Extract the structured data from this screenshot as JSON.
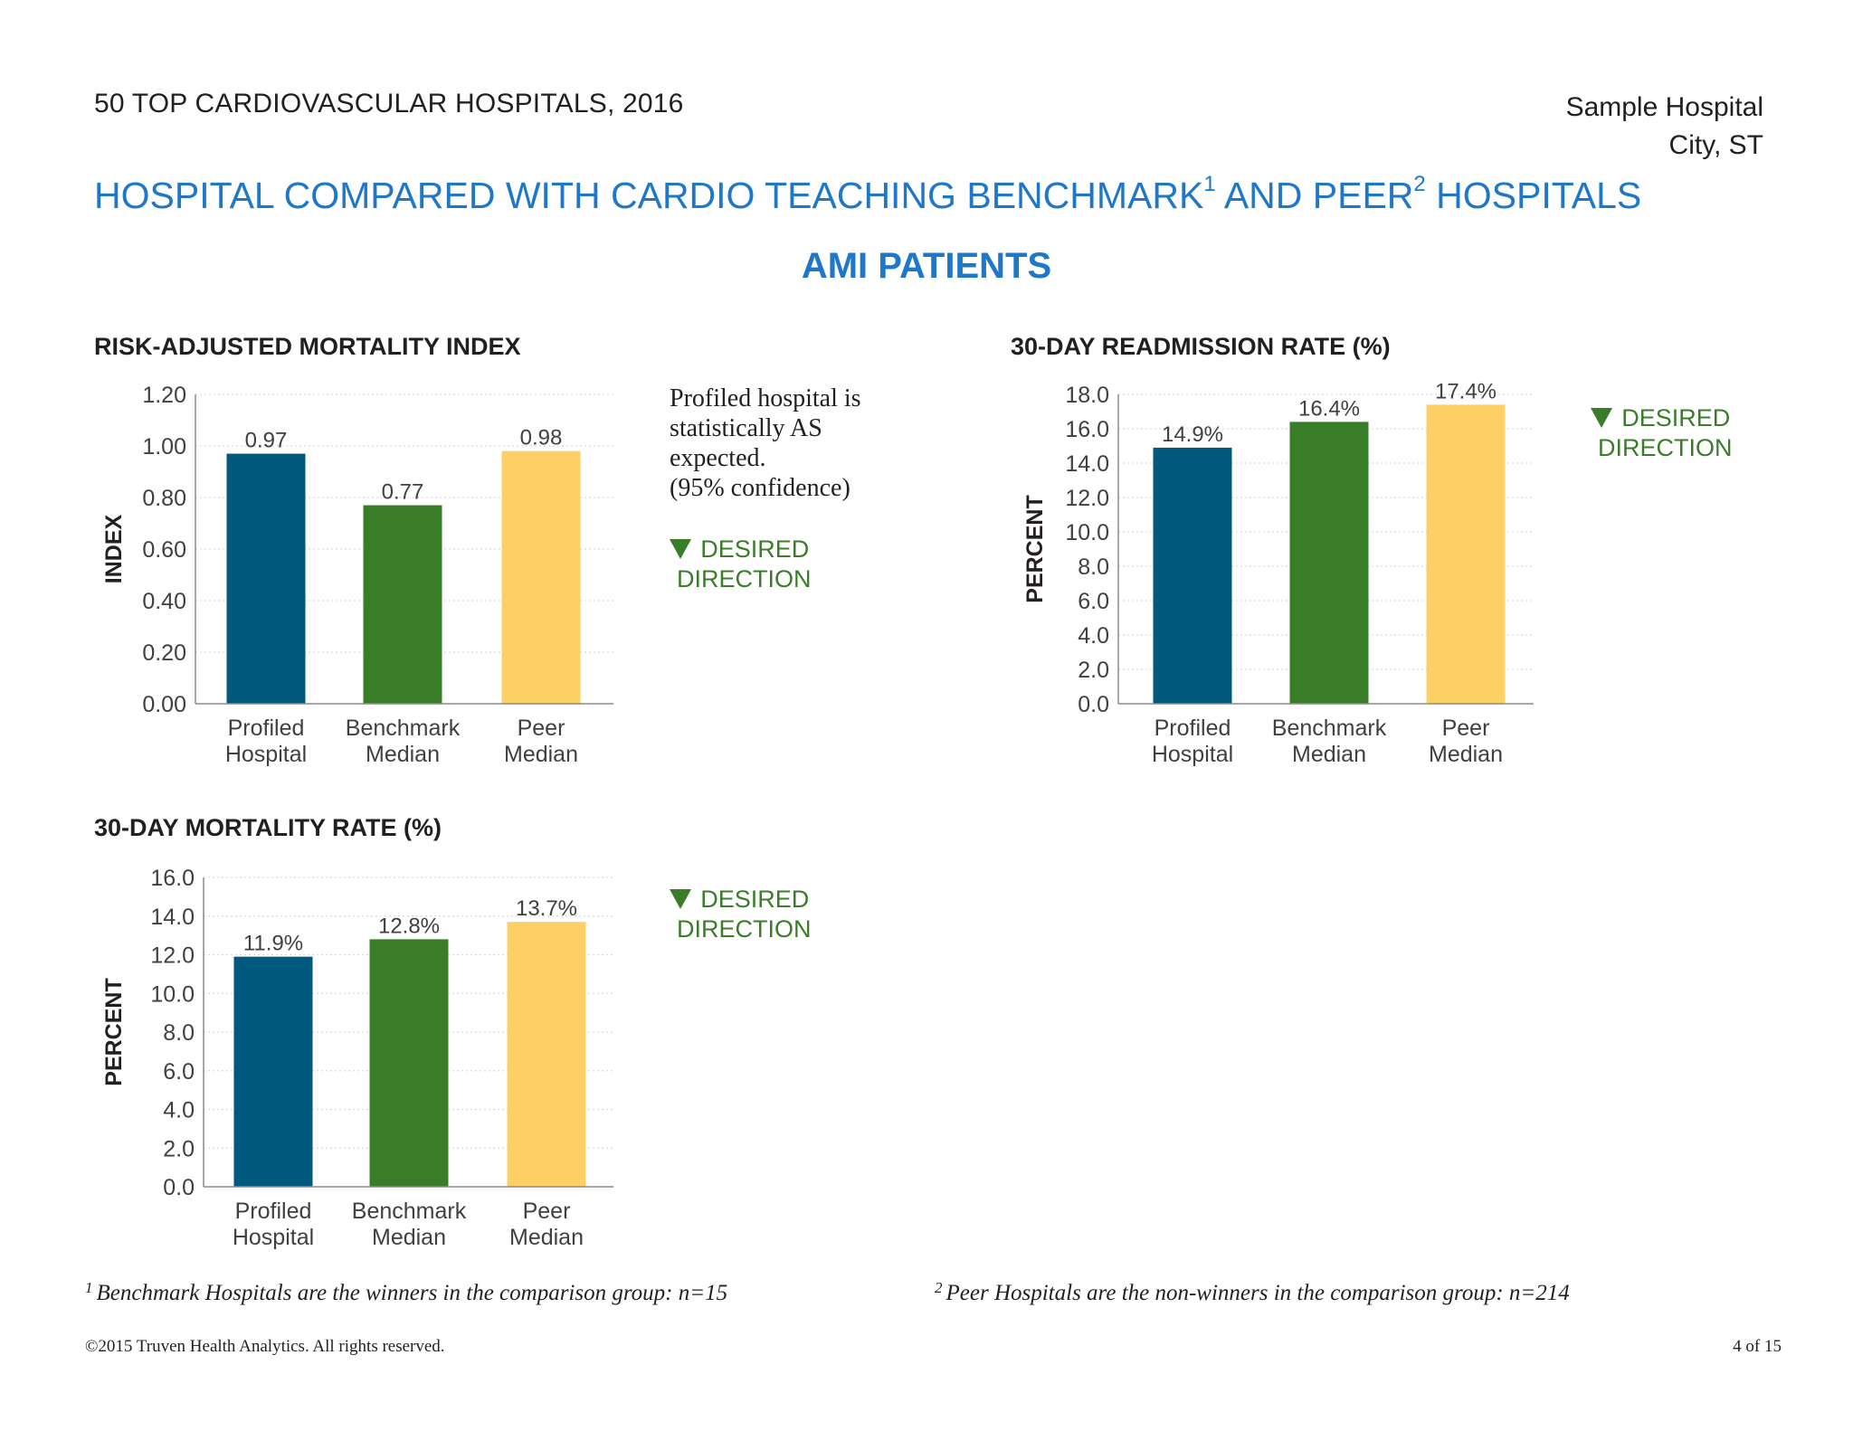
{
  "header": {
    "report_title": "50 TOP CARDIOVASCULAR HOSPITALS, 2016",
    "hospital_name": "Sample Hospital",
    "hospital_location": "City, ST"
  },
  "subtitle": {
    "part1": "HOSPITAL COMPARED WITH CARDIO TEACHING BENCHMARK",
    "sup1": "1",
    "part2": " AND PEER",
    "sup2": "2",
    "part3": " HOSPITALS"
  },
  "section_title": "AMI PATIENTS",
  "note": {
    "line1": "Profiled hospital is",
    "line2": "statistically AS",
    "line3": "expected.",
    "line4": "(95% confidence)"
  },
  "desired_direction": {
    "line1": "DESIRED",
    "line2": "DIRECTION"
  },
  "colors": {
    "profiled": "#02597f",
    "benchmark": "#3a7d29",
    "peer": "#fdd066",
    "accent": "#1f77c9",
    "desired": "#3a7d29"
  },
  "chart_data": [
    {
      "type": "bar",
      "title": "RISK-ADJUSTED MORTALITY INDEX",
      "ylabel": "INDEX",
      "categories": [
        [
          "Profiled",
          "Hospital"
        ],
        [
          "Benchmark",
          "Median"
        ],
        [
          "Peer",
          "Median"
        ]
      ],
      "values": [
        0.97,
        0.77,
        0.98
      ],
      "value_labels": [
        "0.97",
        "0.77",
        "0.98"
      ],
      "ylim": [
        0,
        1.2
      ],
      "yticks": [
        "0.00",
        "0.20",
        "0.40",
        "0.60",
        "0.80",
        "1.00",
        "1.20"
      ],
      "grid": true
    },
    {
      "type": "bar",
      "title": "30-DAY READMISSION RATE (%)",
      "ylabel": "PERCENT",
      "categories": [
        [
          "Profiled",
          "Hospital"
        ],
        [
          "Benchmark",
          "Median"
        ],
        [
          "Peer",
          "Median"
        ]
      ],
      "values": [
        14.9,
        16.4,
        17.4
      ],
      "value_labels": [
        "14.9%",
        "16.4%",
        "17.4%"
      ],
      "ylim": [
        0,
        18
      ],
      "yticks": [
        "0.0",
        "2.0",
        "4.0",
        "6.0",
        "8.0",
        "10.0",
        "12.0",
        "14.0",
        "16.0",
        "18.0"
      ],
      "grid": true
    },
    {
      "type": "bar",
      "title": "30-DAY MORTALITY RATE (%)",
      "ylabel": "PERCENT",
      "categories": [
        [
          "Profiled",
          "Hospital"
        ],
        [
          "Benchmark",
          "Median"
        ],
        [
          "Peer",
          "Median"
        ]
      ],
      "values": [
        11.9,
        12.8,
        13.7
      ],
      "value_labels": [
        "11.9%",
        "12.8%",
        "13.7%"
      ],
      "ylim": [
        0,
        16
      ],
      "yticks": [
        "0.0",
        "2.0",
        "4.0",
        "6.0",
        "8.0",
        "10.0",
        "12.0",
        "14.0",
        "16.0"
      ],
      "grid": true
    }
  ],
  "footnotes": {
    "f1_marker": "1",
    "f1_text": "Benchmark Hospitals are the winners in the comparison group: n=15",
    "f2_marker": "2",
    "f2_text": "Peer Hospitals are the non-winners in the comparison group: n=214"
  },
  "footer": {
    "copyright": "©2015 Truven Health Analytics. All rights reserved.",
    "page": "4 of 15"
  }
}
